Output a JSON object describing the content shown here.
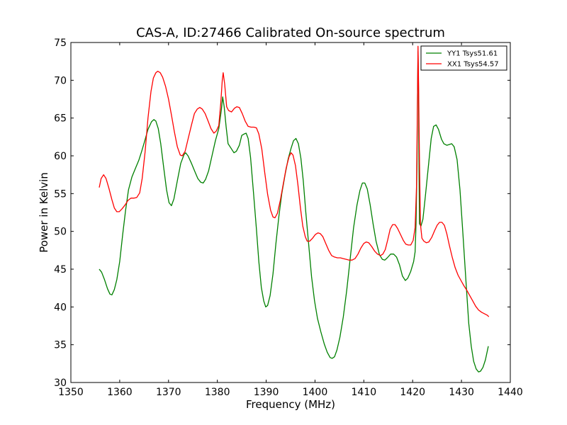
{
  "chart_data": {
    "type": "line",
    "title": "CAS-A, ID:27466 Calibrated On-source spectrum",
    "xlabel": "Frequency (MHz)",
    "ylabel": "Power in Kelvin",
    "xlim": [
      1350,
      1440
    ],
    "ylim": [
      30,
      75
    ],
    "xticks": [
      1350,
      1360,
      1370,
      1380,
      1390,
      1400,
      1410,
      1420,
      1430,
      1440
    ],
    "yticks": [
      30,
      35,
      40,
      45,
      50,
      55,
      60,
      65,
      70,
      75
    ],
    "grid": false,
    "legend_position": "top-right",
    "series": [
      {
        "name": "YY1 Tsys51.61",
        "color": "#008000",
        "points": [
          [
            1355.8,
            45.0
          ],
          [
            1356.3,
            44.6
          ],
          [
            1356.9,
            43.6
          ],
          [
            1357.5,
            42.4
          ],
          [
            1358.0,
            41.7
          ],
          [
            1358.4,
            41.6
          ],
          [
            1358.9,
            42.3
          ],
          [
            1359.4,
            43.6
          ],
          [
            1360.0,
            46.0
          ],
          [
            1360.6,
            49.5
          ],
          [
            1361.2,
            52.8
          ],
          [
            1361.8,
            55.5
          ],
          [
            1362.5,
            57.2
          ],
          [
            1363.2,
            58.3
          ],
          [
            1363.9,
            59.4
          ],
          [
            1364.5,
            60.6
          ],
          [
            1365.1,
            61.9
          ],
          [
            1365.8,
            63.5
          ],
          [
            1366.5,
            64.5
          ],
          [
            1367.0,
            64.8
          ],
          [
            1367.4,
            64.6
          ],
          [
            1367.9,
            63.6
          ],
          [
            1368.4,
            61.6
          ],
          [
            1369.0,
            58.5
          ],
          [
            1369.6,
            55.5
          ],
          [
            1370.1,
            53.8
          ],
          [
            1370.6,
            53.4
          ],
          [
            1371.1,
            54.3
          ],
          [
            1371.8,
            56.7
          ],
          [
            1372.5,
            59.0
          ],
          [
            1373.2,
            60.2
          ],
          [
            1373.5,
            60.4
          ],
          [
            1374.0,
            60.0
          ],
          [
            1374.7,
            59.0
          ],
          [
            1375.4,
            57.9
          ],
          [
            1376.0,
            57.0
          ],
          [
            1376.6,
            56.5
          ],
          [
            1377.1,
            56.4
          ],
          [
            1377.6,
            56.9
          ],
          [
            1378.2,
            58.0
          ],
          [
            1378.9,
            60.0
          ],
          [
            1379.6,
            62.0
          ],
          [
            1380.3,
            63.6
          ],
          [
            1380.8,
            66.0
          ],
          [
            1381.1,
            67.8
          ],
          [
            1381.4,
            66.5
          ],
          [
            1381.8,
            63.8
          ],
          [
            1382.2,
            61.6
          ],
          [
            1382.8,
            61.0
          ],
          [
            1383.4,
            60.4
          ],
          [
            1383.9,
            60.6
          ],
          [
            1384.5,
            61.4
          ],
          [
            1385.0,
            62.7
          ],
          [
            1385.5,
            62.9
          ],
          [
            1385.9,
            63.0
          ],
          [
            1386.3,
            62.3
          ],
          [
            1386.8,
            59.8
          ],
          [
            1387.4,
            55.2
          ],
          [
            1388.0,
            50.3
          ],
          [
            1388.5,
            46.0
          ],
          [
            1389.0,
            42.6
          ],
          [
            1389.5,
            40.8
          ],
          [
            1389.9,
            40.0
          ],
          [
            1390.3,
            40.2
          ],
          [
            1390.8,
            41.5
          ],
          [
            1391.4,
            44.4
          ],
          [
            1392.0,
            48.4
          ],
          [
            1392.6,
            52.0
          ],
          [
            1393.2,
            55.0
          ],
          [
            1393.9,
            57.6
          ],
          [
            1394.5,
            59.6
          ],
          [
            1395.1,
            61.0
          ],
          [
            1395.6,
            62.0
          ],
          [
            1396.1,
            62.3
          ],
          [
            1396.6,
            61.6
          ],
          [
            1397.1,
            59.7
          ],
          [
            1397.6,
            56.7
          ],
          [
            1398.1,
            52.6
          ],
          [
            1398.7,
            48.3
          ],
          [
            1399.3,
            44.0
          ],
          [
            1399.9,
            40.8
          ],
          [
            1400.5,
            38.5
          ],
          [
            1401.2,
            36.7
          ],
          [
            1401.9,
            35.1
          ],
          [
            1402.5,
            34.0
          ],
          [
            1403.1,
            33.3
          ],
          [
            1403.5,
            33.2
          ],
          [
            1404.0,
            33.4
          ],
          [
            1404.5,
            34.3
          ],
          [
            1405.1,
            36.0
          ],
          [
            1405.8,
            38.7
          ],
          [
            1406.5,
            42.2
          ],
          [
            1407.2,
            46.3
          ],
          [
            1407.9,
            50.5
          ],
          [
            1408.6,
            53.5
          ],
          [
            1409.2,
            55.4
          ],
          [
            1409.7,
            56.4
          ],
          [
            1410.2,
            56.4
          ],
          [
            1410.7,
            55.6
          ],
          [
            1411.3,
            53.5
          ],
          [
            1411.9,
            51.0
          ],
          [
            1412.5,
            48.7
          ],
          [
            1413.2,
            46.9
          ],
          [
            1413.8,
            46.3
          ],
          [
            1414.3,
            46.2
          ],
          [
            1414.8,
            46.5
          ],
          [
            1415.5,
            47.0
          ],
          [
            1416.1,
            47.0
          ],
          [
            1416.7,
            46.6
          ],
          [
            1417.3,
            45.6
          ],
          [
            1417.9,
            44.1
          ],
          [
            1418.5,
            43.5
          ],
          [
            1419.0,
            43.8
          ],
          [
            1419.6,
            44.7
          ],
          [
            1420.2,
            46.0
          ],
          [
            1420.5,
            47.3
          ],
          [
            1420.7,
            51.0
          ],
          [
            1420.9,
            59.0
          ],
          [
            1421.0,
            68.0
          ],
          [
            1421.1,
            73.8
          ],
          [
            1421.2,
            69.0
          ],
          [
            1421.3,
            58.0
          ],
          [
            1421.4,
            51.0
          ],
          [
            1421.7,
            50.7
          ],
          [
            1422.1,
            51.6
          ],
          [
            1422.6,
            54.6
          ],
          [
            1423.2,
            58.5
          ],
          [
            1423.8,
            62.3
          ],
          [
            1424.3,
            63.9
          ],
          [
            1424.8,
            64.1
          ],
          [
            1425.3,
            63.5
          ],
          [
            1425.9,
            62.2
          ],
          [
            1426.4,
            61.6
          ],
          [
            1427.0,
            61.4
          ],
          [
            1427.5,
            61.5
          ],
          [
            1428.0,
            61.6
          ],
          [
            1428.5,
            61.2
          ],
          [
            1429.1,
            59.5
          ],
          [
            1429.7,
            55.5
          ],
          [
            1430.3,
            49.6
          ],
          [
            1430.9,
            43.6
          ],
          [
            1431.5,
            37.8
          ],
          [
            1432.0,
            34.8
          ],
          [
            1432.5,
            32.8
          ],
          [
            1433.0,
            31.8
          ],
          [
            1433.5,
            31.4
          ],
          [
            1433.9,
            31.5
          ],
          [
            1434.4,
            32.0
          ],
          [
            1434.9,
            33.0
          ],
          [
            1435.5,
            34.8
          ]
        ]
      },
      {
        "name": "XX1 Tsys54.57",
        "color": "#ff0000",
        "points": [
          [
            1355.8,
            55.8
          ],
          [
            1356.2,
            57.0
          ],
          [
            1356.7,
            57.5
          ],
          [
            1357.2,
            57.0
          ],
          [
            1357.8,
            55.7
          ],
          [
            1358.4,
            54.2
          ],
          [
            1358.9,
            53.1
          ],
          [
            1359.4,
            52.6
          ],
          [
            1359.9,
            52.6
          ],
          [
            1360.5,
            53.0
          ],
          [
            1361.1,
            53.5
          ],
          [
            1361.7,
            54.1
          ],
          [
            1362.3,
            54.4
          ],
          [
            1362.9,
            54.4
          ],
          [
            1363.5,
            54.5
          ],
          [
            1364.1,
            55.1
          ],
          [
            1364.6,
            57.0
          ],
          [
            1365.2,
            60.5
          ],
          [
            1365.8,
            65.0
          ],
          [
            1366.4,
            68.5
          ],
          [
            1366.9,
            70.3
          ],
          [
            1367.4,
            71.0
          ],
          [
            1367.8,
            71.2
          ],
          [
            1368.3,
            71.0
          ],
          [
            1368.8,
            70.4
          ],
          [
            1369.4,
            69.2
          ],
          [
            1370.0,
            67.5
          ],
          [
            1370.6,
            65.4
          ],
          [
            1371.2,
            63.2
          ],
          [
            1371.8,
            61.2
          ],
          [
            1372.4,
            60.1
          ],
          [
            1372.8,
            60.0
          ],
          [
            1373.4,
            60.6
          ],
          [
            1374.0,
            62.2
          ],
          [
            1374.7,
            64.1
          ],
          [
            1375.3,
            65.6
          ],
          [
            1375.9,
            66.2
          ],
          [
            1376.4,
            66.4
          ],
          [
            1376.9,
            66.2
          ],
          [
            1377.5,
            65.6
          ],
          [
            1378.1,
            64.6
          ],
          [
            1378.7,
            63.6
          ],
          [
            1379.3,
            63.0
          ],
          [
            1379.8,
            63.3
          ],
          [
            1380.3,
            64.0
          ],
          [
            1380.7,
            67.0
          ],
          [
            1381.0,
            70.0
          ],
          [
            1381.2,
            71.0
          ],
          [
            1381.5,
            69.5
          ],
          [
            1381.9,
            66.5
          ],
          [
            1382.3,
            66.0
          ],
          [
            1382.9,
            65.8
          ],
          [
            1383.5,
            66.3
          ],
          [
            1384.0,
            66.5
          ],
          [
            1384.5,
            66.4
          ],
          [
            1385.1,
            65.6
          ],
          [
            1385.7,
            64.6
          ],
          [
            1386.3,
            63.9
          ],
          [
            1386.9,
            63.8
          ],
          [
            1387.5,
            63.8
          ],
          [
            1388.0,
            63.7
          ],
          [
            1388.5,
            62.9
          ],
          [
            1389.1,
            60.9
          ],
          [
            1389.7,
            57.8
          ],
          [
            1390.3,
            54.9
          ],
          [
            1390.9,
            52.8
          ],
          [
            1391.4,
            51.9
          ],
          [
            1391.8,
            51.8
          ],
          [
            1392.3,
            52.4
          ],
          [
            1392.9,
            54.1
          ],
          [
            1393.5,
            56.3
          ],
          [
            1394.1,
            58.4
          ],
          [
            1394.7,
            59.9
          ],
          [
            1395.1,
            60.4
          ],
          [
            1395.5,
            60.1
          ],
          [
            1396.0,
            58.7
          ],
          [
            1396.5,
            56.2
          ],
          [
            1397.0,
            53.2
          ],
          [
            1397.5,
            50.7
          ],
          [
            1398.0,
            49.3
          ],
          [
            1398.4,
            48.7
          ],
          [
            1398.9,
            48.7
          ],
          [
            1399.5,
            49.1
          ],
          [
            1400.1,
            49.6
          ],
          [
            1400.6,
            49.8
          ],
          [
            1401.1,
            49.7
          ],
          [
            1401.6,
            49.3
          ],
          [
            1402.2,
            48.4
          ],
          [
            1402.8,
            47.5
          ],
          [
            1403.4,
            46.8
          ],
          [
            1404.0,
            46.6
          ],
          [
            1404.6,
            46.5
          ],
          [
            1405.2,
            46.5
          ],
          [
            1405.8,
            46.4
          ],
          [
            1406.4,
            46.3
          ],
          [
            1407.0,
            46.2
          ],
          [
            1407.6,
            46.2
          ],
          [
            1408.2,
            46.4
          ],
          [
            1408.8,
            47.0
          ],
          [
            1409.4,
            47.8
          ],
          [
            1410.0,
            48.4
          ],
          [
            1410.5,
            48.6
          ],
          [
            1411.0,
            48.5
          ],
          [
            1411.6,
            48.0
          ],
          [
            1412.2,
            47.4
          ],
          [
            1412.8,
            47.0
          ],
          [
            1413.4,
            46.8
          ],
          [
            1413.9,
            47.0
          ],
          [
            1414.4,
            47.6
          ],
          [
            1414.9,
            48.9
          ],
          [
            1415.4,
            50.3
          ],
          [
            1415.9,
            50.9
          ],
          [
            1416.4,
            50.9
          ],
          [
            1416.9,
            50.4
          ],
          [
            1417.5,
            49.6
          ],
          [
            1418.1,
            48.8
          ],
          [
            1418.6,
            48.3
          ],
          [
            1419.1,
            48.2
          ],
          [
            1419.6,
            48.2
          ],
          [
            1420.1,
            48.8
          ],
          [
            1420.5,
            50.5
          ],
          [
            1420.8,
            56.0
          ],
          [
            1421.0,
            68.0
          ],
          [
            1421.1,
            74.5
          ],
          [
            1421.2,
            70.0
          ],
          [
            1421.4,
            59.0
          ],
          [
            1421.6,
            51.0
          ],
          [
            1421.9,
            49.1
          ],
          [
            1422.3,
            48.7
          ],
          [
            1422.8,
            48.5
          ],
          [
            1423.3,
            48.6
          ],
          [
            1423.9,
            49.2
          ],
          [
            1424.5,
            50.1
          ],
          [
            1425.0,
            50.8
          ],
          [
            1425.5,
            51.2
          ],
          [
            1426.0,
            51.2
          ],
          [
            1426.5,
            50.8
          ],
          [
            1427.0,
            49.7
          ],
          [
            1427.5,
            48.2
          ],
          [
            1428.1,
            46.6
          ],
          [
            1428.7,
            45.2
          ],
          [
            1429.3,
            44.2
          ],
          [
            1429.9,
            43.5
          ],
          [
            1430.5,
            42.8
          ],
          [
            1431.1,
            42.2
          ],
          [
            1431.7,
            41.5
          ],
          [
            1432.3,
            40.8
          ],
          [
            1432.9,
            40.1
          ],
          [
            1433.5,
            39.6
          ],
          [
            1434.1,
            39.3
          ],
          [
            1434.7,
            39.1
          ],
          [
            1435.3,
            38.9
          ],
          [
            1435.6,
            38.7
          ]
        ]
      }
    ]
  }
}
